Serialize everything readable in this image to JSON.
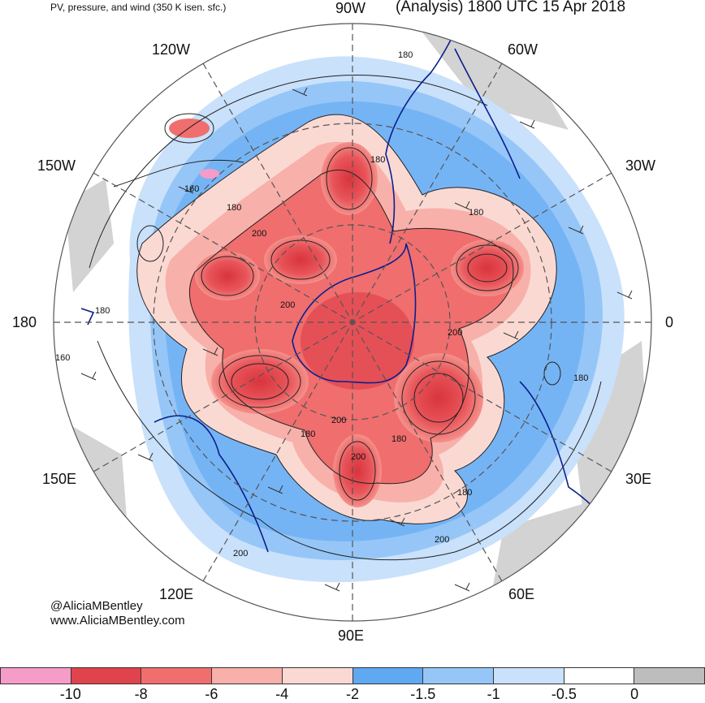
{
  "header": {
    "subtitle": "PV, pressure, and wind (350 K isen. sfc.)",
    "title": "(Analysis) 1800 UTC 15 Apr 2018"
  },
  "longitude_labels": {
    "n90w": "90W",
    "n60w": "60W",
    "n30w": "30W",
    "n0": "0",
    "n30e": "30E",
    "n60e": "60E",
    "n90e": "90E",
    "n120e": "120E",
    "n150e": "150E",
    "n180": "180",
    "n150w": "150W",
    "n120w": "120W"
  },
  "contour_labels": [
    "180",
    "180",
    "160",
    "180",
    "200",
    "200",
    "180",
    "200",
    "200",
    "180",
    "200",
    "180",
    "180",
    "200",
    "180",
    "200",
    "180",
    "160"
  ],
  "credits": {
    "handle": "@AliciaMBentley",
    "site": "www.AliciaMBentley.com"
  },
  "colorbar": {
    "colors": [
      "#f59cc8",
      "#e0434b",
      "#f06e6e",
      "#f8b0aa",
      "#fbd9d3",
      "#5fa8f2",
      "#96c6f7",
      "#c9e1fb",
      "#ffffff",
      "#bdbdbd"
    ],
    "ticks": [
      "-10",
      "-8",
      "-6",
      "-4",
      "-2",
      "-1.5",
      "-1",
      "-0.5",
      "0"
    ]
  }
}
